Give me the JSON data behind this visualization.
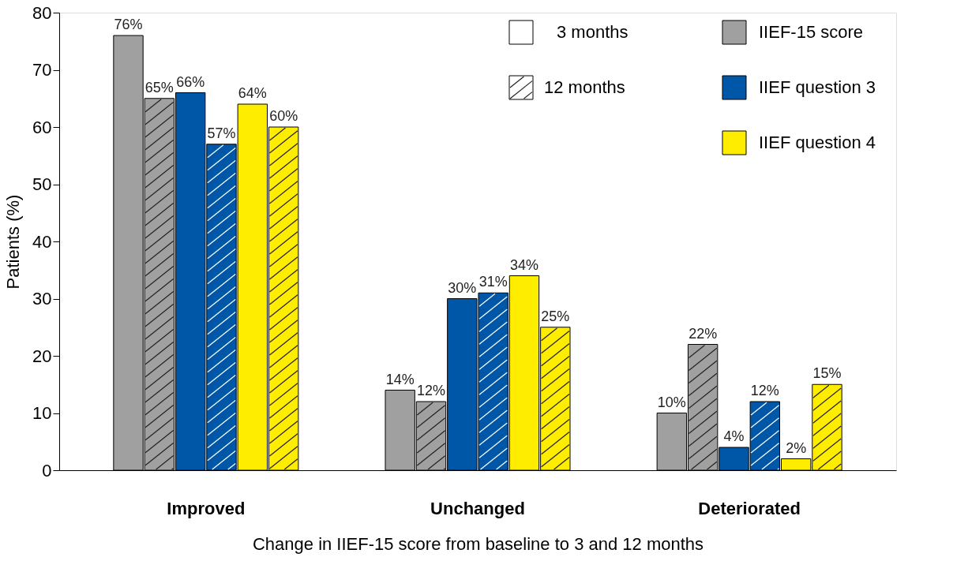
{
  "chart_data": {
    "type": "bar",
    "xlabel": "Change in IIEF-15 score from baseline to 3 and 12 months",
    "ylabel": "Patients (%)",
    "categories": [
      "Improved",
      "Unchanged",
      "Deteriorated"
    ],
    "ylim": [
      0,
      80
    ],
    "yticks": [
      0,
      10,
      20,
      30,
      40,
      50,
      60,
      70,
      80
    ],
    "grid": false,
    "legend": "top right",
    "annotations": [
      "3 months",
      "12 months"
    ],
    "series": [
      {
        "name": "IIEF-15 score",
        "color": "#a0a0a0",
        "values": [
          76,
          14,
          10
        ],
        "value_labels": [
          "76%",
          "14%",
          "10%"
        ]
      },
      {
        "color": "#a0a0a0",
        "values": [
          65,
          12,
          22
        ],
        "value_labels": [
          "65%",
          "12%",
          "22%"
        ]
      },
      {
        "name": "IIEF question 3",
        "color": "#0057a8",
        "values": [
          66,
          30,
          4
        ],
        "value_labels": [
          "66%",
          "30%",
          "4%"
        ]
      },
      {
        "color": "#0057a8",
        "values": [
          57,
          31,
          12
        ],
        "value_labels": [
          "57%",
          "31%",
          "12%"
        ]
      },
      {
        "name": "IIEF question 4",
        "color": "#ffed00",
        "values": [
          64,
          34,
          2
        ],
        "value_labels": [
          "64%",
          "34%",
          "2%"
        ]
      },
      {
        "color": "#ffed00",
        "values": [
          60,
          25,
          15
        ],
        "value_labels": [
          "60%",
          "25%",
          "15%"
        ]
      }
    ]
  }
}
